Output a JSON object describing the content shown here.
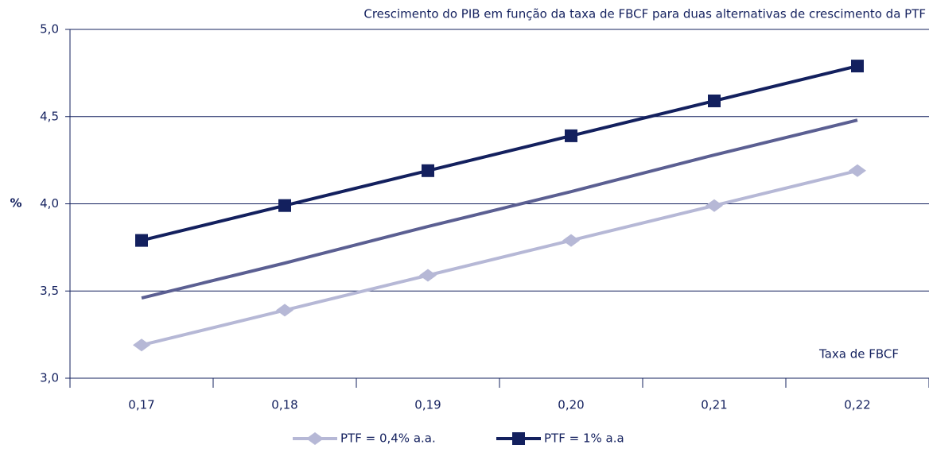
{
  "chart_data": {
    "type": "line",
    "title": "Crescimento do PIB em função da taxa de FBCF para duas alternativas de crescimento da PTF",
    "y_label": "%",
    "x_label": "Taxa de FBCF",
    "categories": [
      "0,17",
      "0,18",
      "0,19",
      "0,20",
      "0,21",
      "0,22"
    ],
    "series": [
      {
        "name": "PTF = 0,4% a.a.",
        "color": "#b6b8d6",
        "marker": "diamond",
        "values": [
          3.19,
          3.39,
          3.59,
          3.79,
          3.99,
          4.19
        ]
      },
      {
        "color": "#5b5f92",
        "marker": "none",
        "values": [
          3.46,
          3.66,
          3.87,
          4.07,
          4.28,
          4.48
        ]
      },
      {
        "name": "PTF = 1% a.a",
        "color": "#13205e",
        "marker": "square",
        "values": [
          3.79,
          3.99,
          4.19,
          4.39,
          4.59,
          4.79
        ]
      }
    ],
    "ylim": [
      3,
      5
    ],
    "yticks": [
      {
        "value": 3,
        "label": "3,0"
      },
      {
        "value": 3.5,
        "label": "3,5"
      },
      {
        "value": 4,
        "label": "4,0"
      },
      {
        "value": 4.5,
        "label": "4,5"
      },
      {
        "value": 5,
        "label": "5,0"
      }
    ],
    "grid": true
  }
}
